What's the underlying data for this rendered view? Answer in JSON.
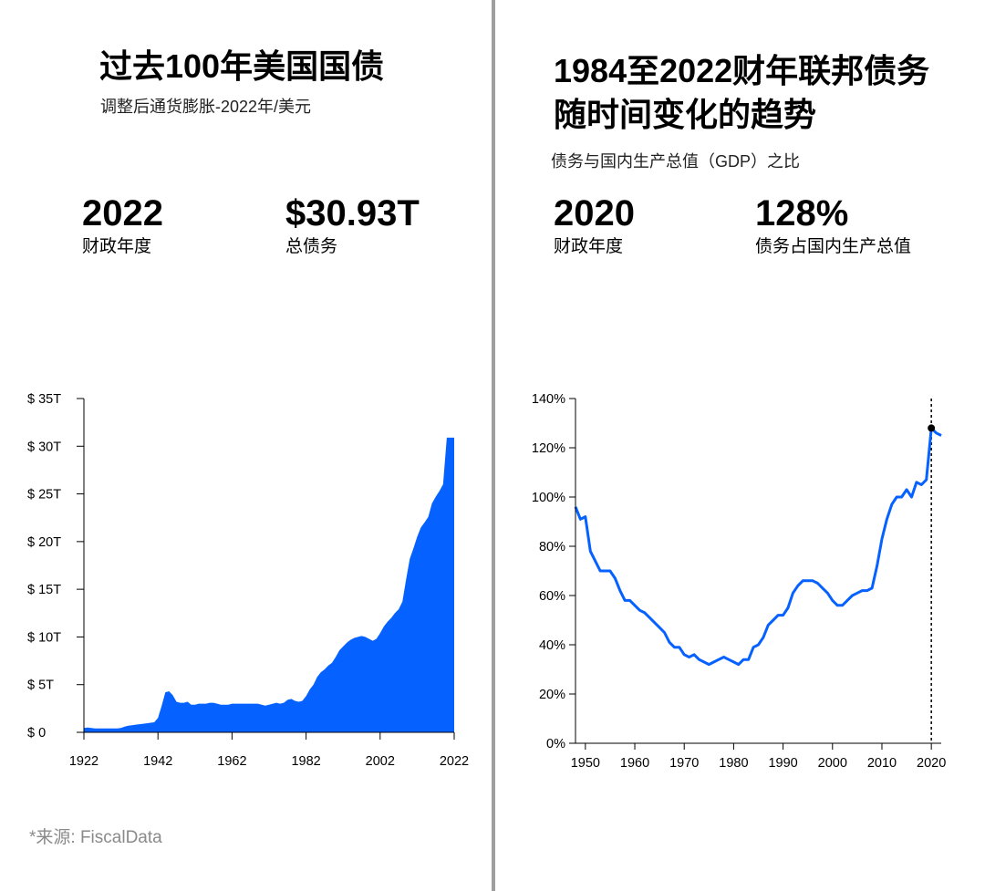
{
  "left": {
    "title": "过去100年美国国债",
    "subtitle": "调整后通货膨胀-2022年/美元",
    "stats": [
      {
        "value": "2022",
        "label": "财政年度"
      },
      {
        "value": "$30.93T",
        "label": "总债务"
      }
    ]
  },
  "right": {
    "title_line1": "1984至2022财年联邦债务",
    "title_line2": "随时间变化的趋势",
    "subtitle": "债务与国内生产总值（GDP）之比",
    "stats": [
      {
        "value": "2020",
        "label": "财政年度"
      },
      {
        "value": "128%",
        "label": "债务占国内生产总值"
      }
    ]
  },
  "source": "*来源: FiscalData",
  "colors": {
    "accent": "#0561ff",
    "divider": "#9e9e9e"
  },
  "chart_data": [
    {
      "type": "area",
      "ylabel": "",
      "xlabel": "",
      "ylim": [
        0,
        35
      ],
      "xlim": [
        1922,
        2022
      ],
      "y_ticks": [
        0,
        5,
        10,
        15,
        20,
        25,
        30,
        35
      ],
      "y_tick_labels": [
        "$ 0",
        "$ 5T",
        "$ 10T",
        "$ 15T",
        "$ 20T",
        "$ 25T",
        "$ 30T",
        "$ 35T"
      ],
      "x_ticks": [
        1922,
        1942,
        1962,
        1982,
        2002,
        2022
      ],
      "x_tick_labels": [
        "1922",
        "1942",
        "1962",
        "1982",
        "2002",
        "2022"
      ],
      "grid": false,
      "color": "#0561ff",
      "x": [
        1922,
        1923,
        1924,
        1925,
        1926,
        1927,
        1928,
        1929,
        1930,
        1931,
        1932,
        1933,
        1934,
        1935,
        1936,
        1937,
        1938,
        1939,
        1940,
        1941,
        1942,
        1943,
        1944,
        1945,
        1946,
        1947,
        1948,
        1949,
        1950,
        1951,
        1952,
        1953,
        1954,
        1955,
        1956,
        1957,
        1958,
        1959,
        1960,
        1961,
        1962,
        1963,
        1964,
        1965,
        1966,
        1967,
        1968,
        1969,
        1970,
        1971,
        1972,
        1973,
        1974,
        1975,
        1976,
        1977,
        1978,
        1979,
        1980,
        1981,
        1982,
        1983,
        1984,
        1985,
        1986,
        1987,
        1988,
        1989,
        1990,
        1991,
        1992,
        1993,
        1994,
        1995,
        1996,
        1997,
        1998,
        1999,
        2000,
        2001,
        2002,
        2003,
        2004,
        2005,
        2006,
        2007,
        2008,
        2009,
        2010,
        2011,
        2012,
        2013,
        2014,
        2015,
        2016,
        2017,
        2018,
        2019,
        2020,
        2021,
        2022
      ],
      "values": [
        0.45,
        0.5,
        0.45,
        0.4,
        0.4,
        0.4,
        0.4,
        0.4,
        0.4,
        0.4,
        0.45,
        0.6,
        0.7,
        0.75,
        0.8,
        0.85,
        0.9,
        0.95,
        1.0,
        1.05,
        1.5,
        2.8,
        4.2,
        4.3,
        3.9,
        3.2,
        3.1,
        3.1,
        3.2,
        2.9,
        2.9,
        3.0,
        3.0,
        3.0,
        3.1,
        3.1,
        3.0,
        2.9,
        2.9,
        2.9,
        3.0,
        3.0,
        3.0,
        3.0,
        3.0,
        3.0,
        3.0,
        3.0,
        2.9,
        2.8,
        2.9,
        3.0,
        3.1,
        3.0,
        3.1,
        3.4,
        3.5,
        3.3,
        3.2,
        3.3,
        3.8,
        4.5,
        5.0,
        5.8,
        6.3,
        6.6,
        7.0,
        7.3,
        7.9,
        8.6,
        9.0,
        9.4,
        9.7,
        9.9,
        10.0,
        10.1,
        10.0,
        9.8,
        9.6,
        9.8,
        10.4,
        11.1,
        11.6,
        12.0,
        12.5,
        12.9,
        13.7,
        16.0,
        18.2,
        19.3,
        20.5,
        21.5,
        22.0,
        22.6,
        24.0,
        24.7,
        25.3,
        26.0,
        30.9,
        30.9,
        30.9
      ]
    },
    {
      "type": "line",
      "ylabel": "",
      "xlabel": "",
      "ylim": [
        0,
        140
      ],
      "xlim": [
        1948,
        2022
      ],
      "y_ticks": [
        0,
        20,
        40,
        60,
        80,
        100,
        120,
        140
      ],
      "y_tick_labels": [
        "0%",
        "20%",
        "40%",
        "60%",
        "80%",
        "100%",
        "120%",
        "140%"
      ],
      "x_ticks": [
        1950,
        1960,
        1970,
        1980,
        1990,
        2000,
        2010,
        2020
      ],
      "x_tick_labels": [
        "1950",
        "1960",
        "1970",
        "1980",
        "1990",
        "2000",
        "2010",
        "2020"
      ],
      "grid": false,
      "color": "#0561ff",
      "highlight": {
        "x": 2020,
        "y": 128
      },
      "x": [
        1948,
        1949,
        1950,
        1951,
        1952,
        1953,
        1954,
        1955,
        1956,
        1957,
        1958,
        1959,
        1960,
        1961,
        1962,
        1963,
        1964,
        1965,
        1966,
        1967,
        1968,
        1969,
        1970,
        1971,
        1972,
        1973,
        1974,
        1975,
        1976,
        1977,
        1978,
        1979,
        1980,
        1981,
        1982,
        1983,
        1984,
        1985,
        1986,
        1987,
        1988,
        1989,
        1990,
        1991,
        1992,
        1993,
        1994,
        1995,
        1996,
        1997,
        1998,
        1999,
        2000,
        2001,
        2002,
        2003,
        2004,
        2005,
        2006,
        2007,
        2008,
        2009,
        2010,
        2011,
        2012,
        2013,
        2014,
        2015,
        2016,
        2017,
        2018,
        2019,
        2020,
        2021,
        2022
      ],
      "values": [
        96,
        91,
        92,
        78,
        74,
        70,
        70,
        70,
        67,
        62,
        58,
        58,
        56,
        54,
        53,
        51,
        49,
        47,
        45,
        41,
        39,
        39,
        36,
        35,
        36,
        34,
        33,
        32,
        33,
        34,
        35,
        34,
        33,
        32,
        34,
        34,
        39,
        40,
        43,
        48,
        50,
        52,
        52,
        55,
        61,
        64,
        66,
        66,
        66,
        65,
        63,
        61,
        58,
        56,
        56,
        58,
        60,
        61,
        62,
        62,
        63,
        72,
        83,
        91,
        97,
        100,
        100,
        103,
        100,
        106,
        105,
        107,
        128,
        126,
        125
      ]
    }
  ]
}
